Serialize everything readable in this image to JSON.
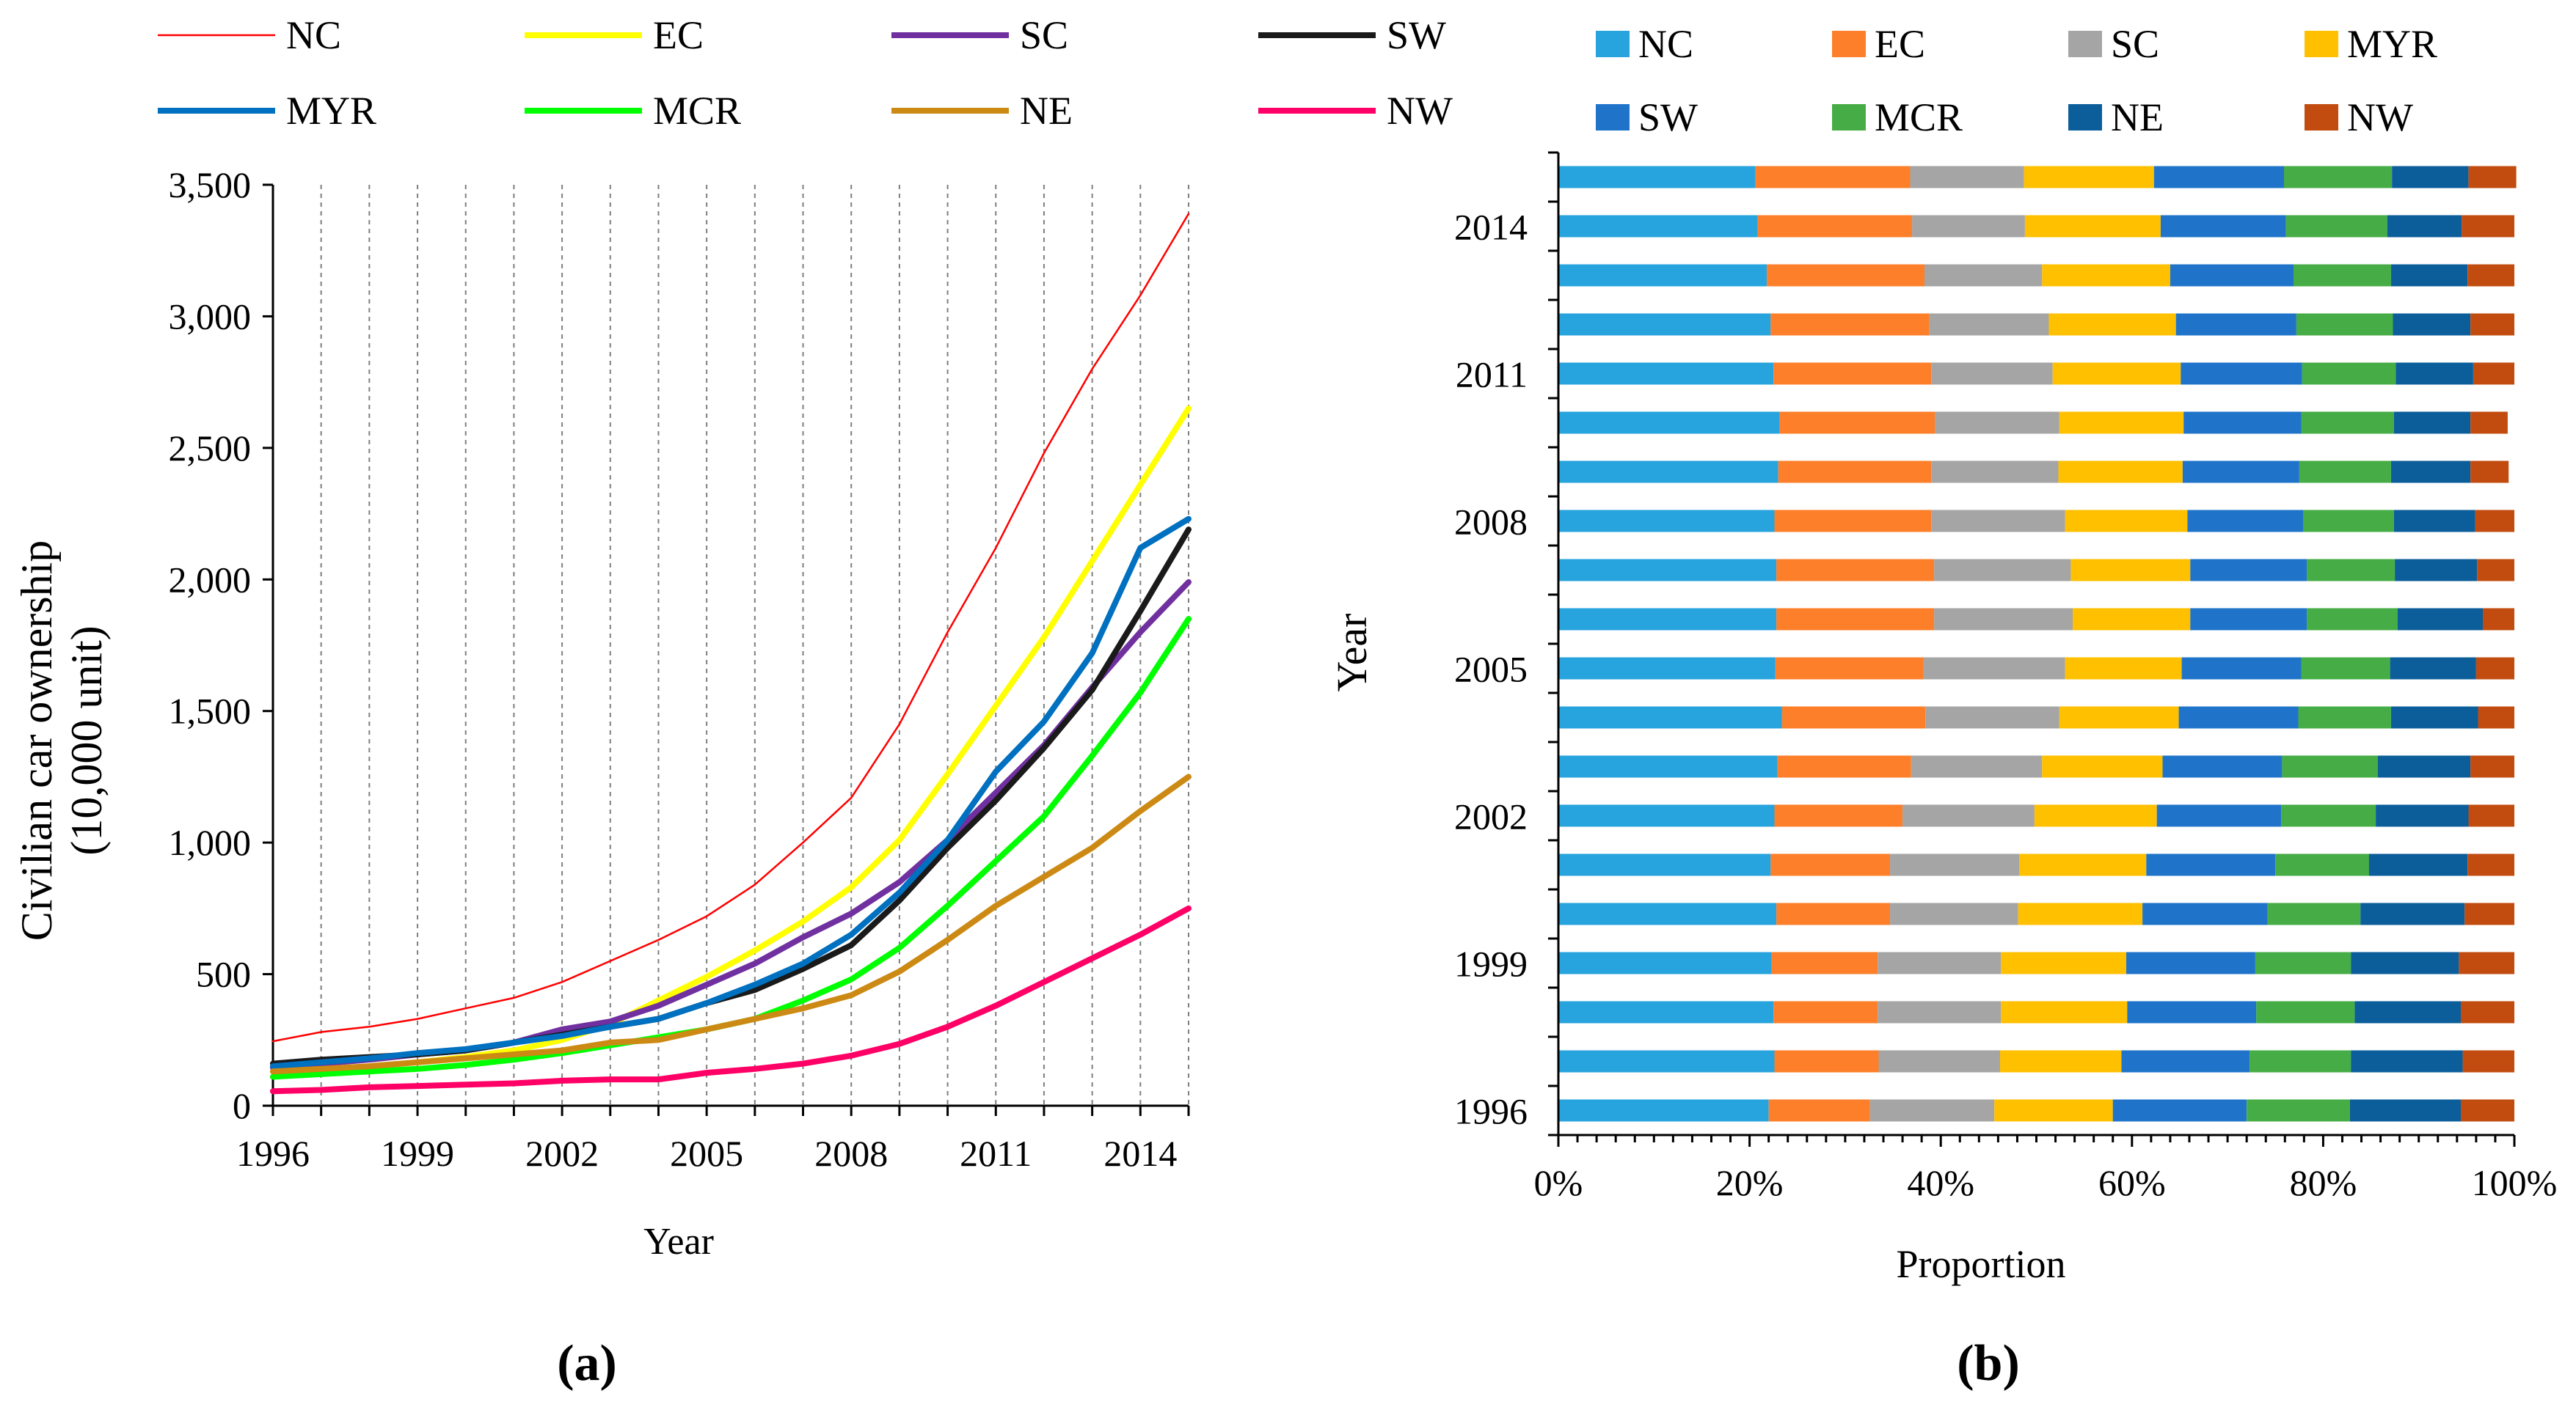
{
  "figure": {
    "panel_a_caption": "(a)",
    "panel_b_caption": "(b)"
  },
  "chart_data": [
    {
      "type": "line",
      "title": "",
      "xlabel": "Year",
      "ylabel": "Civilian car ownership (10,000 unit)",
      "ylabel_line1": "Civilian car ownership",
      "ylabel_line2": "(10,000 unit)",
      "ylim": [
        0,
        3500
      ],
      "xlim": [
        1996,
        2015
      ],
      "x": [
        1996,
        1997,
        1998,
        1999,
        2000,
        2001,
        2002,
        2003,
        2004,
        2005,
        2006,
        2007,
        2008,
        2009,
        2010,
        2011,
        2012,
        2013,
        2014,
        2015
      ],
      "x_tick_labels": [
        "1996",
        "1999",
        "2002",
        "2005",
        "2008",
        "2011",
        "2014"
      ],
      "x_tick_values": [
        1996,
        1999,
        2002,
        2005,
        2008,
        2011,
        2014
      ],
      "y_tick_labels": [
        "0",
        "500",
        "1,000",
        "1,500",
        "2,000",
        "2,500",
        "3,000",
        "3,500"
      ],
      "y_tick_values": [
        0,
        500,
        1000,
        1500,
        2000,
        2500,
        3000,
        3500
      ],
      "grid": "vertical dashed",
      "legend_position": "top",
      "series": [
        {
          "name": "NC",
          "color": "#ff0000",
          "thin": true,
          "values": [
            245,
            280,
            300,
            330,
            370,
            410,
            470,
            550,
            630,
            720,
            840,
            1000,
            1170,
            1450,
            1800,
            2120,
            2480,
            2800,
            3080,
            3390
          ]
        },
        {
          "name": "EC",
          "color": "#ffff00",
          "values": [
            130,
            135,
            150,
            165,
            185,
            210,
            250,
            310,
            400,
            490,
            590,
            700,
            830,
            1010,
            1260,
            1520,
            1780,
            2070,
            2360,
            2650
          ]
        },
        {
          "name": "SC",
          "color": "#7030a0",
          "values": [
            145,
            160,
            175,
            195,
            210,
            240,
            290,
            320,
            380,
            460,
            540,
            640,
            730,
            850,
            1010,
            1190,
            1370,
            1590,
            1800,
            1990
          ]
        },
        {
          "name": "SW",
          "color": "#1a1a1a",
          "values": [
            160,
            175,
            185,
            195,
            210,
            240,
            270,
            300,
            330,
            390,
            440,
            520,
            610,
            780,
            980,
            1160,
            1360,
            1580,
            1880,
            2190
          ]
        },
        {
          "name": "MYR",
          "color": "#0070c0",
          "values": [
            150,
            165,
            180,
            200,
            215,
            240,
            265,
            300,
            330,
            390,
            460,
            540,
            650,
            810,
            1010,
            1270,
            1460,
            1720,
            2120,
            2230
          ]
        },
        {
          "name": "MCR",
          "color": "#00ff00",
          "values": [
            110,
            120,
            130,
            140,
            155,
            175,
            200,
            230,
            260,
            290,
            330,
            400,
            480,
            600,
            760,
            930,
            1100,
            1330,
            1570,
            1850
          ]
        },
        {
          "name": "NE",
          "color": "#cc8a14",
          "values": [
            130,
            140,
            150,
            165,
            180,
            195,
            210,
            240,
            250,
            290,
            330,
            370,
            420,
            510,
            630,
            760,
            870,
            980,
            1120,
            1250
          ]
        },
        {
          "name": "NW",
          "color": "#ff0066",
          "values": [
            55,
            60,
            70,
            75,
            80,
            85,
            95,
            100,
            100,
            125,
            140,
            160,
            190,
            235,
            300,
            380,
            470,
            560,
            650,
            750
          ]
        }
      ]
    },
    {
      "type": "bar",
      "orientation": "horizontal",
      "stacked": "100%",
      "title": "",
      "xlabel": "Proportion",
      "ylabel": "Year",
      "xlim": [
        0,
        100
      ],
      "x_tick_labels": [
        "0%",
        "20%",
        "40%",
        "60%",
        "80%",
        "100%"
      ],
      "x_tick_values": [
        0,
        20,
        40,
        60,
        80,
        100
      ],
      "categories": [
        "1996",
        "1997",
        "1998",
        "1999",
        "2000",
        "2001",
        "2002",
        "2003",
        "2004",
        "2005",
        "2006",
        "2007",
        "2008",
        "2009",
        "2010",
        "2011",
        "2012",
        "2013",
        "2014",
        "2015"
      ],
      "y_tick_labels": [
        "1996",
        "1999",
        "2002",
        "2005",
        "2008",
        "2011",
        "2014"
      ],
      "y_tick_categories": [
        "1996",
        "1999",
        "2002",
        "2005",
        "2008",
        "2011",
        "2014"
      ],
      "legend_position": "top",
      "series": [
        {
          "name": "NC",
          "color": "#27a3dd",
          "values": [
            22.0,
            22.6,
            22.5,
            22.3,
            22.8,
            22.2,
            22.6,
            22.9,
            23.4,
            22.7,
            22.8,
            22.8,
            22.6,
            23.0,
            23.1,
            22.5,
            22.2,
            21.8,
            20.8,
            20.6
          ]
        },
        {
          "name": "EC",
          "color": "#fd7f2a",
          "values": [
            10.6,
            10.9,
            10.9,
            11.1,
            11.9,
            12.5,
            13.4,
            14.0,
            15.0,
            15.5,
            16.5,
            16.5,
            16.4,
            16.0,
            16.3,
            16.5,
            16.6,
            16.5,
            16.2,
            16.2
          ]
        },
        {
          "name": "SC",
          "color": "#a5a5a5",
          "values": [
            13.0,
            12.7,
            12.9,
            12.9,
            13.4,
            13.5,
            13.8,
            13.7,
            14.0,
            14.8,
            14.5,
            14.3,
            14.0,
            13.3,
            13.0,
            12.7,
            12.5,
            12.3,
            11.8,
            11.9
          ]
        },
        {
          "name": "MYR",
          "color": "#ffc000",
          "values": [
            12.4,
            12.7,
            13.2,
            13.1,
            13.0,
            13.3,
            12.8,
            12.6,
            12.5,
            12.2,
            12.3,
            12.5,
            12.8,
            13.0,
            13.0,
            13.4,
            13.3,
            13.4,
            14.2,
            13.6
          ]
        },
        {
          "name": "SW",
          "color": "#1f74ca",
          "values": [
            14.0,
            13.4,
            13.5,
            13.5,
            13.1,
            13.5,
            13.0,
            12.5,
            12.5,
            12.5,
            12.2,
            12.2,
            12.1,
            12.2,
            12.3,
            12.7,
            12.6,
            12.9,
            13.1,
            13.6
          ]
        },
        {
          "name": "MCR",
          "color": "#46ac45",
          "values": [
            10.8,
            10.6,
            10.3,
            10.0,
            9.7,
            9.8,
            9.9,
            10.0,
            9.7,
            9.3,
            9.5,
            9.2,
            9.5,
            9.6,
            9.7,
            9.8,
            10.1,
            10.2,
            10.6,
            11.3
          ]
        },
        {
          "name": "NE",
          "color": "#0c5e9b",
          "values": [
            11.6,
            11.7,
            11.1,
            11.3,
            10.9,
            10.3,
            9.7,
            9.7,
            9.1,
            9.0,
            8.9,
            8.6,
            8.5,
            8.3,
            8.0,
            8.1,
            8.1,
            8.0,
            7.8,
            8.0
          ]
        },
        {
          "name": "NW",
          "color": "#c24c0f",
          "values": [
            5.6,
            5.4,
            5.6,
            5.8,
            5.2,
            4.9,
            4.8,
            4.6,
            3.8,
            4.0,
            3.3,
            3.9,
            4.1,
            4.0,
            3.9,
            4.3,
            4.6,
            4.9,
            5.5,
            5.0
          ]
        }
      ]
    }
  ]
}
